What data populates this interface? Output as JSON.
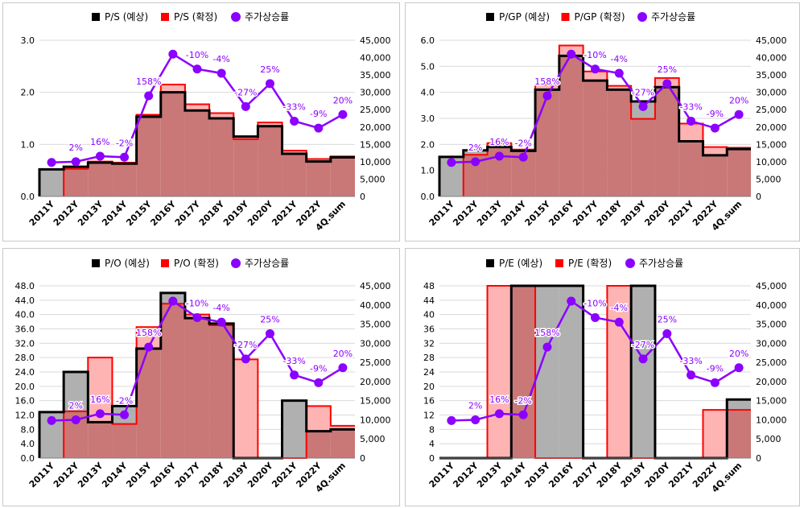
{
  "colors": {
    "estimate_line": "#000000",
    "estimate_fill": "#b0b0b0",
    "confirmed_line": "#ff0000",
    "confirmed_fill": "#ffb4b4",
    "overlap_fill": "#c97777",
    "price_line": "#8b00ff",
    "grid": "#d9d9d9"
  },
  "legend_markers": [
    "black-square-icon",
    "red-square-icon",
    "purple-circle-icon"
  ],
  "chart_data": [
    {
      "type": "step-area+line",
      "legend": [
        "P/S (예상)",
        "P/S (확정)",
        "주가상승률"
      ],
      "categories": [
        "2011Y",
        "2012Y",
        "2013Y",
        "2014Y",
        "2015Y",
        "2016Y",
        "2017Y",
        "2018Y",
        "2019Y",
        "2020Y",
        "2021Y",
        "2022Y",
        "4Q.sum"
      ],
      "ylim_left": [
        0,
        3.0
      ],
      "yticks_left": [
        "0.0",
        "1.0",
        "2.0",
        "3.0"
      ],
      "estimate_values": [
        0.52,
        0.57,
        0.65,
        0.63,
        1.53,
        2.0,
        1.65,
        1.5,
        1.15,
        1.35,
        0.82,
        0.67,
        0.75
      ],
      "confirmed_values": [
        null,
        0.53,
        0.67,
        0.65,
        1.57,
        2.15,
        1.77,
        1.6,
        1.1,
        1.42,
        0.88,
        0.72,
        0.77
      ]
    },
    {
      "type": "step-area+line",
      "legend": [
        "P/GP (예상)",
        "P/GP (확정)",
        "주가상승률"
      ],
      "categories": [
        "2011Y",
        "2012Y",
        "2013Y",
        "2014Y",
        "2015Y",
        "2016Y",
        "2017Y",
        "2018Y",
        "2019Y",
        "2020Y",
        "2021Y",
        "2022Y",
        "4Q.sum"
      ],
      "ylim_left": [
        0,
        6.0
      ],
      "yticks_left": [
        "0.0",
        "1.0",
        "2.0",
        "3.0",
        "4.0",
        "5.0",
        "6.0"
      ],
      "estimate_values": [
        1.52,
        1.77,
        1.9,
        1.75,
        4.1,
        5.4,
        4.45,
        4.1,
        3.65,
        4.2,
        2.12,
        1.58,
        1.82
      ],
      "confirmed_values": [
        null,
        1.6,
        2.05,
        1.8,
        4.3,
        5.8,
        4.8,
        4.25,
        2.98,
        4.55,
        2.8,
        1.9,
        1.87
      ]
    },
    {
      "type": "step-area+line",
      "legend": [
        "P/O (예상)",
        "P/O (확정)",
        "주가상승률"
      ],
      "categories": [
        "2011Y",
        "2012Y",
        "2013Y",
        "2014Y",
        "2015Y",
        "2016Y",
        "2017Y",
        "2018Y",
        "2019Y",
        "2020Y",
        "2021Y",
        "2022Y",
        "4Q.sum"
      ],
      "ylim_left": [
        0,
        48
      ],
      "yticks_left": [
        "0.0",
        "4.0",
        "8.0",
        "12.0",
        "16.0",
        "20.0",
        "24.0",
        "28.0",
        "32.0",
        "36.0",
        "40.0",
        "44.0",
        "48.0"
      ],
      "estimate_values": [
        12.8,
        24,
        10,
        14.5,
        30.5,
        46,
        39,
        37.5,
        0,
        0,
        16,
        7.5,
        8
      ],
      "confirmed_values": [
        null,
        13,
        28,
        9.5,
        36.5,
        43,
        40,
        37,
        27.5,
        0,
        0,
        14.5,
        9
      ]
    },
    {
      "type": "step-area+line",
      "legend": [
        "P/E (예상)",
        "P/E (확정)",
        "주가상승률"
      ],
      "categories": [
        "2011Y",
        "2012Y",
        "2013Y",
        "2014Y",
        "2015Y",
        "2016Y",
        "2017Y",
        "2018Y",
        "2019Y",
        "2020Y",
        "2021Y",
        "2022Y",
        "4Q.sum"
      ],
      "ylim_left": [
        0,
        50
      ],
      "yticks_left": [
        "0",
        "4",
        "8",
        "12",
        "16",
        "20",
        "24",
        "28",
        "32",
        "36",
        "40",
        "44",
        "48"
      ],
      "estimate_values": [
        0,
        0,
        0,
        50,
        50,
        50,
        0,
        0,
        50,
        0,
        0,
        0,
        17
      ],
      "confirmed_values": [
        null,
        0,
        50,
        50,
        0,
        0,
        0,
        50,
        0,
        0,
        0,
        14,
        14
      ]
    }
  ],
  "price_series": {
    "name": "주가상승률",
    "ylim_right": [
      0,
      45000
    ],
    "yticks_right": [
      "0",
      "5,000",
      "10,000",
      "15,000",
      "20,000",
      "25,000",
      "30,000",
      "35,000",
      "40,000",
      "45,000"
    ],
    "values": [
      9800,
      10000,
      11600,
      11300,
      29000,
      41000,
      36700,
      35500,
      25900,
      32500,
      21700,
      19700,
      23600
    ],
    "labels": [
      "",
      "2%",
      "16%",
      "-2%",
      "158%",
      "",
      "-10%",
      "-4%",
      "-27%",
      "25%",
      "-33%",
      "-9%",
      "20%"
    ]
  }
}
